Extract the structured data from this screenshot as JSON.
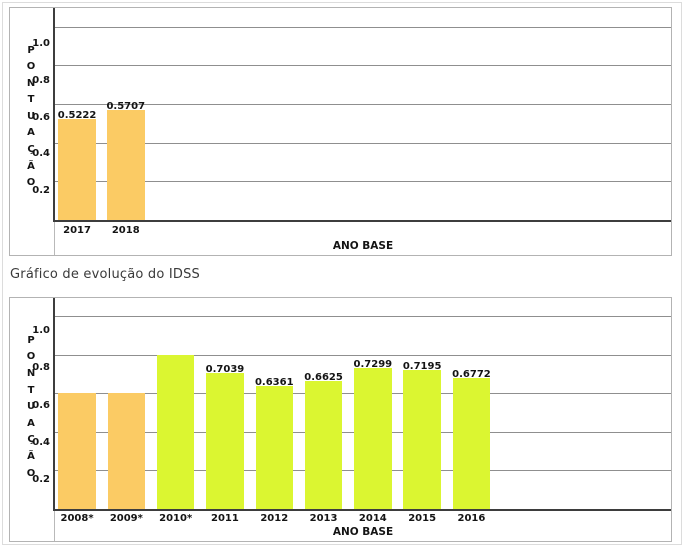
{
  "section_title": {
    "text": "Gráfico de evolução do IDSS"
  },
  "colors": {
    "orange": "#FBCB64",
    "green": "#DBF631",
    "grid": "#8f8f8f",
    "axis": "#3d3d3d",
    "box_border": "#b3b3b3",
    "text": "#141414"
  },
  "chart_data": [
    {
      "id": "idss-score-2017-2018",
      "type": "bar",
      "title": "",
      "ylabel": "PONTUAÇÃO",
      "xlabel": "ANO BASE",
      "ylim": [
        0,
        1.1
      ],
      "yticks": [
        "1.0",
        "0.8",
        "0.6",
        "0.4",
        "0.2"
      ],
      "grid": true,
      "legend_position": "none",
      "categories": [
        "2017",
        "2018"
      ],
      "values": [
        0.5222,
        0.5707
      ],
      "bar_value_labels": [
        "0.5222",
        "0.5707"
      ],
      "bar_color_keys": [
        "orange",
        "orange"
      ]
    },
    {
      "id": "idss-evolution",
      "type": "bar",
      "title": "Gráfico de evolução do IDSS",
      "ylabel": "PONTUAÇÃO",
      "xlabel": "ANO BASE",
      "ylim": [
        0,
        1.1
      ],
      "yticks": [
        "1.0",
        "0.8",
        "0.6",
        "0.4",
        "0.2"
      ],
      "grid": true,
      "legend_position": "none",
      "categories": [
        "2008*",
        "2009*",
        "2010*",
        "2011",
        "2012",
        "2013",
        "2014",
        "2015",
        "2016"
      ],
      "values": [
        0.6,
        0.6,
        0.8,
        0.7039,
        0.6361,
        0.6625,
        0.7299,
        0.7195,
        0.6772
      ],
      "bar_value_labels": [
        "",
        "",
        "",
        "0.7039",
        "0.6361",
        "0.6625",
        "0.7299",
        "0.7195",
        "0.6772"
      ],
      "bar_color_keys": [
        "orange",
        "orange",
        "green",
        "green",
        "green",
        "green",
        "green",
        "green",
        "green"
      ]
    }
  ]
}
